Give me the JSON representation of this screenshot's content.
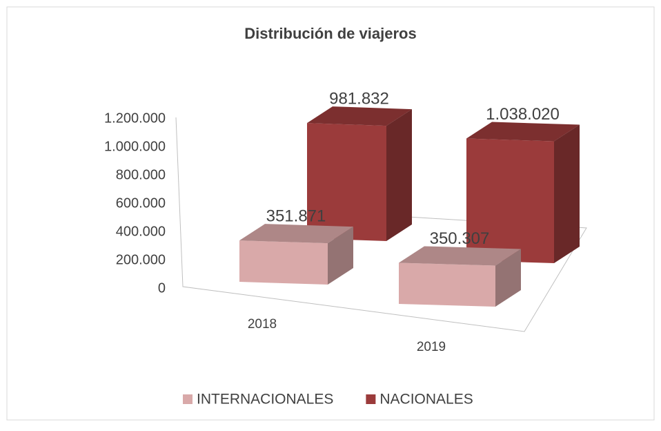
{
  "chart_data": {
    "type": "bar3d",
    "title": "Distribución de viajeros",
    "categories": [
      "2018",
      "2019"
    ],
    "series": [
      {
        "name": "INTERNACIONALES",
        "color": "#d9a9a9",
        "values": [
          351871,
          350307
        ],
        "value_labels": [
          "351.871",
          "350.307"
        ]
      },
      {
        "name": "NACIONALES",
        "color": "#9b3b3b",
        "values": [
          981832,
          1038020
        ],
        "value_labels": [
          "981.832",
          "1.038.020"
        ]
      }
    ],
    "ylim": [
      0,
      1200000
    ],
    "yticks": [
      0,
      {
        "value": 200000,
        "label": "200.000"
      },
      {
        "value": 400000,
        "label": "400.000"
      },
      {
        "value": 600000,
        "label": "600.000"
      },
      {
        "value": 800000,
        "label": "800.000"
      },
      {
        "value": 1000000,
        "label": "1.000.000"
      },
      {
        "value": 1200000,
        "label": "1.200.000"
      }
    ],
    "legend": "bottom"
  }
}
